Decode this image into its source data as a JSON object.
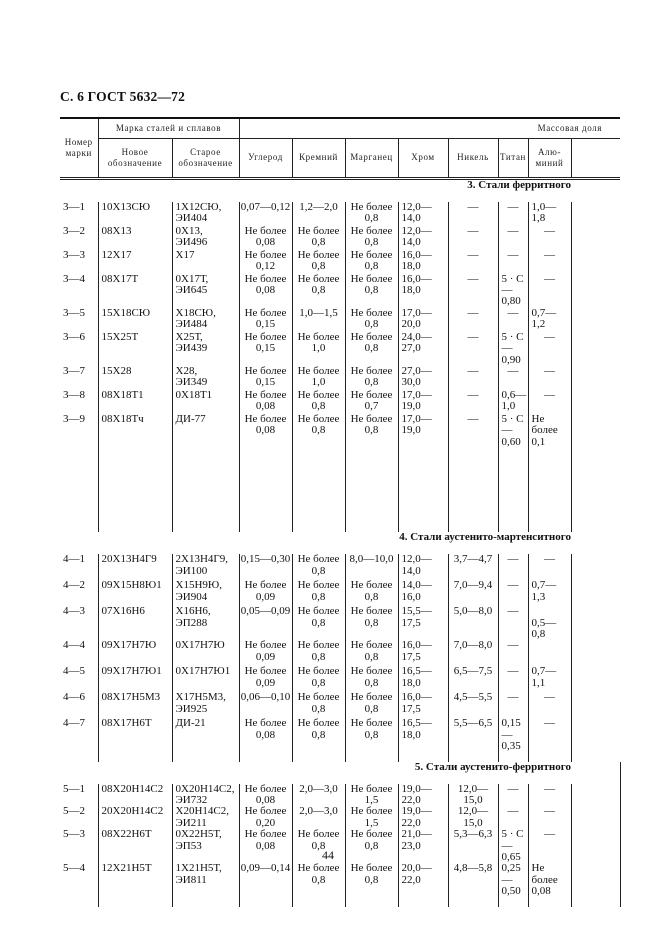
{
  "page_header": "С. 6 ГОСТ 5632—72",
  "page_number": "44",
  "table": {
    "headers": {
      "number": "Номер\nмарки",
      "grade_group": "Марка сталей и сплавов",
      "new": "Новое\nобозначение",
      "old": "Старое\nобозначение",
      "mass_fraction": "Массовая доля",
      "carbon": "Углерод",
      "silicon": "Кремний",
      "manganese": "Марганец",
      "chromium": "Хром",
      "nickel": "Никель",
      "titanium": "Титан",
      "aluminium": "Алю-\nминий"
    },
    "sections": [
      {
        "title": "3. Стали ферритного",
        "rows": [
          [
            "3—1",
            "10Х13СЮ",
            "1Х12СЮ,\nЭИ404",
            "0,07—0,12",
            "1,2—2,0",
            "Не более\n0,8",
            "12,0—14,0",
            "—",
            "—",
            "1,0—\n1,8"
          ],
          [
            "3—2",
            "08Х13",
            "0Х13,\nЭИ496",
            "Не более\n0,08",
            "Не более\n0,8",
            "Не более\n0,8",
            "12,0—14,0",
            "—",
            "—",
            "—"
          ],
          [
            "3—3",
            "12Х17",
            "Х17",
            "Не более\n0,12",
            "Не более\n0,8",
            "Не более\n0,8",
            "16,0—18,0",
            "—",
            "—",
            "—"
          ],
          [
            "3—4",
            "08Х17Т",
            "0Х17Т,\nЭИ645",
            "Не более\n0,08",
            "Не более\n0,8",
            "Не более\n0,8",
            "16,0—18,0",
            "—",
            "5 · С\n—0,80",
            "—"
          ],
          [
            "3—5",
            "15Х18СЮ",
            "Х18СЮ,\nЭИ484",
            "Не более\n0,15",
            "1,0—1,5",
            "Не более\n0,8",
            "17,0—20,0",
            "—",
            "—",
            "0,7—\n1,2"
          ],
          [
            "3—6",
            "15Х25Т",
            "Х25Т,\nЭИ439",
            "Не более\n0,15",
            "Не более\n1,0",
            "Не более\n0,8",
            "24,0—27,0",
            "—",
            "5 · С\n—0,90",
            "—"
          ],
          [
            "3—7",
            "15Х28",
            "Х28,\nЭИ349",
            "Не более\n0,15",
            "Не более\n1,0",
            "Не более\n0,8",
            "27,0—30,0",
            "—",
            "—",
            "—"
          ],
          [
            "3—8",
            "08Х18Т1",
            "0Х18Т1",
            "Не более\n0,08",
            "Не более\n0,8",
            "Не более\n0,7",
            "17,0—19,0",
            "—",
            "0,6—\n1,0",
            "—"
          ],
          [
            "3—9",
            "08Х18Тч",
            "ДИ-77",
            "Не более\n0,08",
            "Не более\n0,8",
            "Не более\n0,8",
            "17,0—19,0",
            "—",
            "5 · С—\n0,60",
            "Не\nболее\n0,1"
          ]
        ]
      },
      {
        "title": "4. Стали аустенито-мартенситного",
        "rows": [
          [
            "4—1",
            "20Х13Н4Г9",
            "2Х13Н4Г9,\nЭИ100",
            "0,15—0,30",
            "Не более\n0,8",
            "8,0—10,0",
            "12,0—14,0",
            "3,7—4,7",
            "—",
            "—"
          ],
          [
            "4—2",
            "09Х15Н8Ю1",
            "Х15Н9Ю,\nЭИ904",
            "Не более\n0,09",
            "Не более\n0,8",
            "Не более\n0,8",
            "14,0—16,0",
            "7,0—9,4",
            "—",
            "0,7—\n1,3"
          ],
          [
            "4—3",
            "07Х16Н6",
            "Х16Н6,\nЭП288",
            "0,05—0,09",
            "Не более\n0,8",
            "Не более\n0,8",
            "15,5—17,5",
            "5,0—8,0",
            "—",
            "\n0,5—\n0,8"
          ],
          [
            "4—4",
            "09Х17Н7Ю",
            "0Х17Н7Ю",
            "Не более\n0,09",
            "Не более\n0,8",
            "Не более\n0,8",
            "16,0—17,5",
            "7,0—8,0",
            "—",
            ""
          ],
          [
            "4—5",
            "09Х17Н7Ю1",
            "0Х17Н7Ю1",
            "Не более\n0,09",
            "Не более\n0,8",
            "Не более\n0,8",
            "16,5—18,0",
            "6,5—7,5",
            "—",
            "0,7—\n1,1"
          ],
          [
            "4—6",
            "08Х17Н5М3",
            "Х17Н5М3,\nЭИ925",
            "0,06—0,10",
            "Не более\n0,8",
            "Не более\n0,8",
            "16,0—17,5",
            "4,5—5,5",
            "—",
            "—"
          ],
          [
            "4—7",
            "08Х17Н6Т",
            "ДИ-21",
            "Не более\n0,08",
            "Не более\n0,8",
            "Не более\n0,8",
            "16,5—18,0",
            "5,5—6,5",
            "0,15—\n0,35",
            "—"
          ]
        ]
      },
      {
        "title": "5. Стали аустенито-ферритного",
        "rows": [
          [
            "5—1",
            "08Х20Н14С2",
            "0Х20Н14С2,\nЭИ732",
            "Не более\n0,08",
            "2,0—3,0",
            "Не более\n1,5",
            "19,0—22,0",
            "12,0—15,0",
            "—",
            "—"
          ],
          [
            "5—2",
            "20Х20Н14С2",
            "Х20Н14С2,\nЭИ211",
            "Не более\n0,20",
            "2,0—3,0",
            "Не более\n1,5",
            "19,0—22,0",
            "12,0—15,0",
            "—",
            "—"
          ],
          [
            "5—3",
            "08Х22Н6Т",
            "0Х22Н5Т,\nЭП53",
            "Не более\n0,08",
            "Не более\n0,8",
            "Не более\n0,8",
            "21,0—23,0",
            "5,3—6,3",
            "5 · С—\n0,65",
            "—"
          ],
          [
            "5—4",
            "12Х21Н5Т",
            "1Х21Н5Т,\nЭИ811",
            "0,09—0,14",
            "Не более\n0,8",
            "Не более\n0,8",
            "20,0—22,0",
            "4,8—5,8",
            "0,25—\n0,50",
            "Не\nболее\n0,08"
          ]
        ]
      }
    ]
  }
}
